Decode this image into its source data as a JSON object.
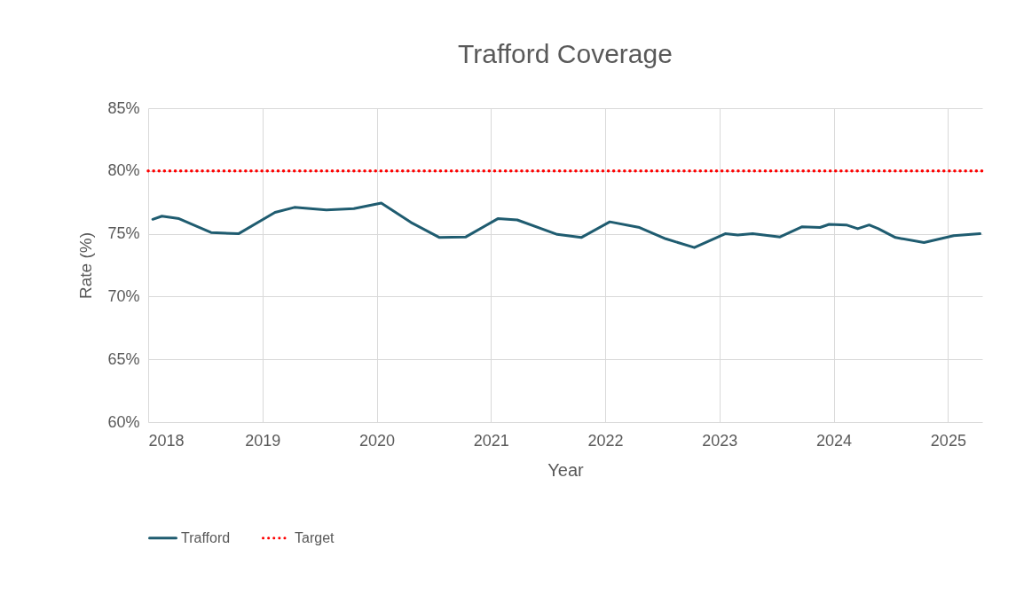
{
  "chart_data": {
    "type": "line",
    "title": "Trafford Coverage",
    "xlabel": "Year",
    "ylabel": "Rate (%)",
    "x": [
      2018.04,
      2018.12,
      2018.27,
      2018.55,
      2018.79,
      2019.11,
      2019.28,
      2019.56,
      2019.8,
      2020.04,
      2020.3,
      2020.55,
      2020.78,
      2021.06,
      2021.23,
      2021.58,
      2021.79,
      2022.04,
      2022.3,
      2022.53,
      2022.78,
      2023.05,
      2023.16,
      2023.29,
      2023.53,
      2023.72,
      2023.88,
      2023.96,
      2024.11,
      2024.21,
      2024.31,
      2024.39,
      2024.54,
      2024.79,
      2025.05,
      2025.28
    ],
    "series": [
      {
        "name": "Trafford",
        "color": "#1f5c70",
        "values": [
          76.15,
          76.4,
          76.2,
          75.1,
          75.0,
          76.7,
          77.1,
          76.9,
          77.0,
          77.45,
          75.9,
          74.7,
          74.75,
          76.2,
          76.1,
          74.95,
          74.7,
          75.95,
          75.5,
          74.6,
          73.9,
          75.0,
          74.9,
          75.0,
          74.75,
          75.55,
          75.5,
          75.75,
          75.7,
          75.4,
          75.7,
          75.4,
          74.7,
          74.3,
          74.85,
          75.0
        ]
      }
    ],
    "ref_lines": [
      {
        "axis": "y",
        "value": 80,
        "label": "Target",
        "color": "#ff0000",
        "line_style": "dotted"
      }
    ],
    "xlim": [
      2018,
      2025.3
    ],
    "xticks": [
      2018,
      2019,
      2020,
      2021,
      2022,
      2023,
      2024,
      2025
    ],
    "ylim": [
      60,
      85
    ],
    "yticks": [
      {
        "value": 60,
        "label": "60%"
      },
      {
        "value": 65,
        "label": "65%"
      },
      {
        "value": 70,
        "label": "70%"
      },
      {
        "value": 75,
        "label": "75%"
      },
      {
        "value": 80,
        "label": "80%"
      },
      {
        "value": 85,
        "label": "85%"
      }
    ],
    "grid": true,
    "legend": "bottom",
    "line_style": "solid",
    "marker": "none"
  }
}
